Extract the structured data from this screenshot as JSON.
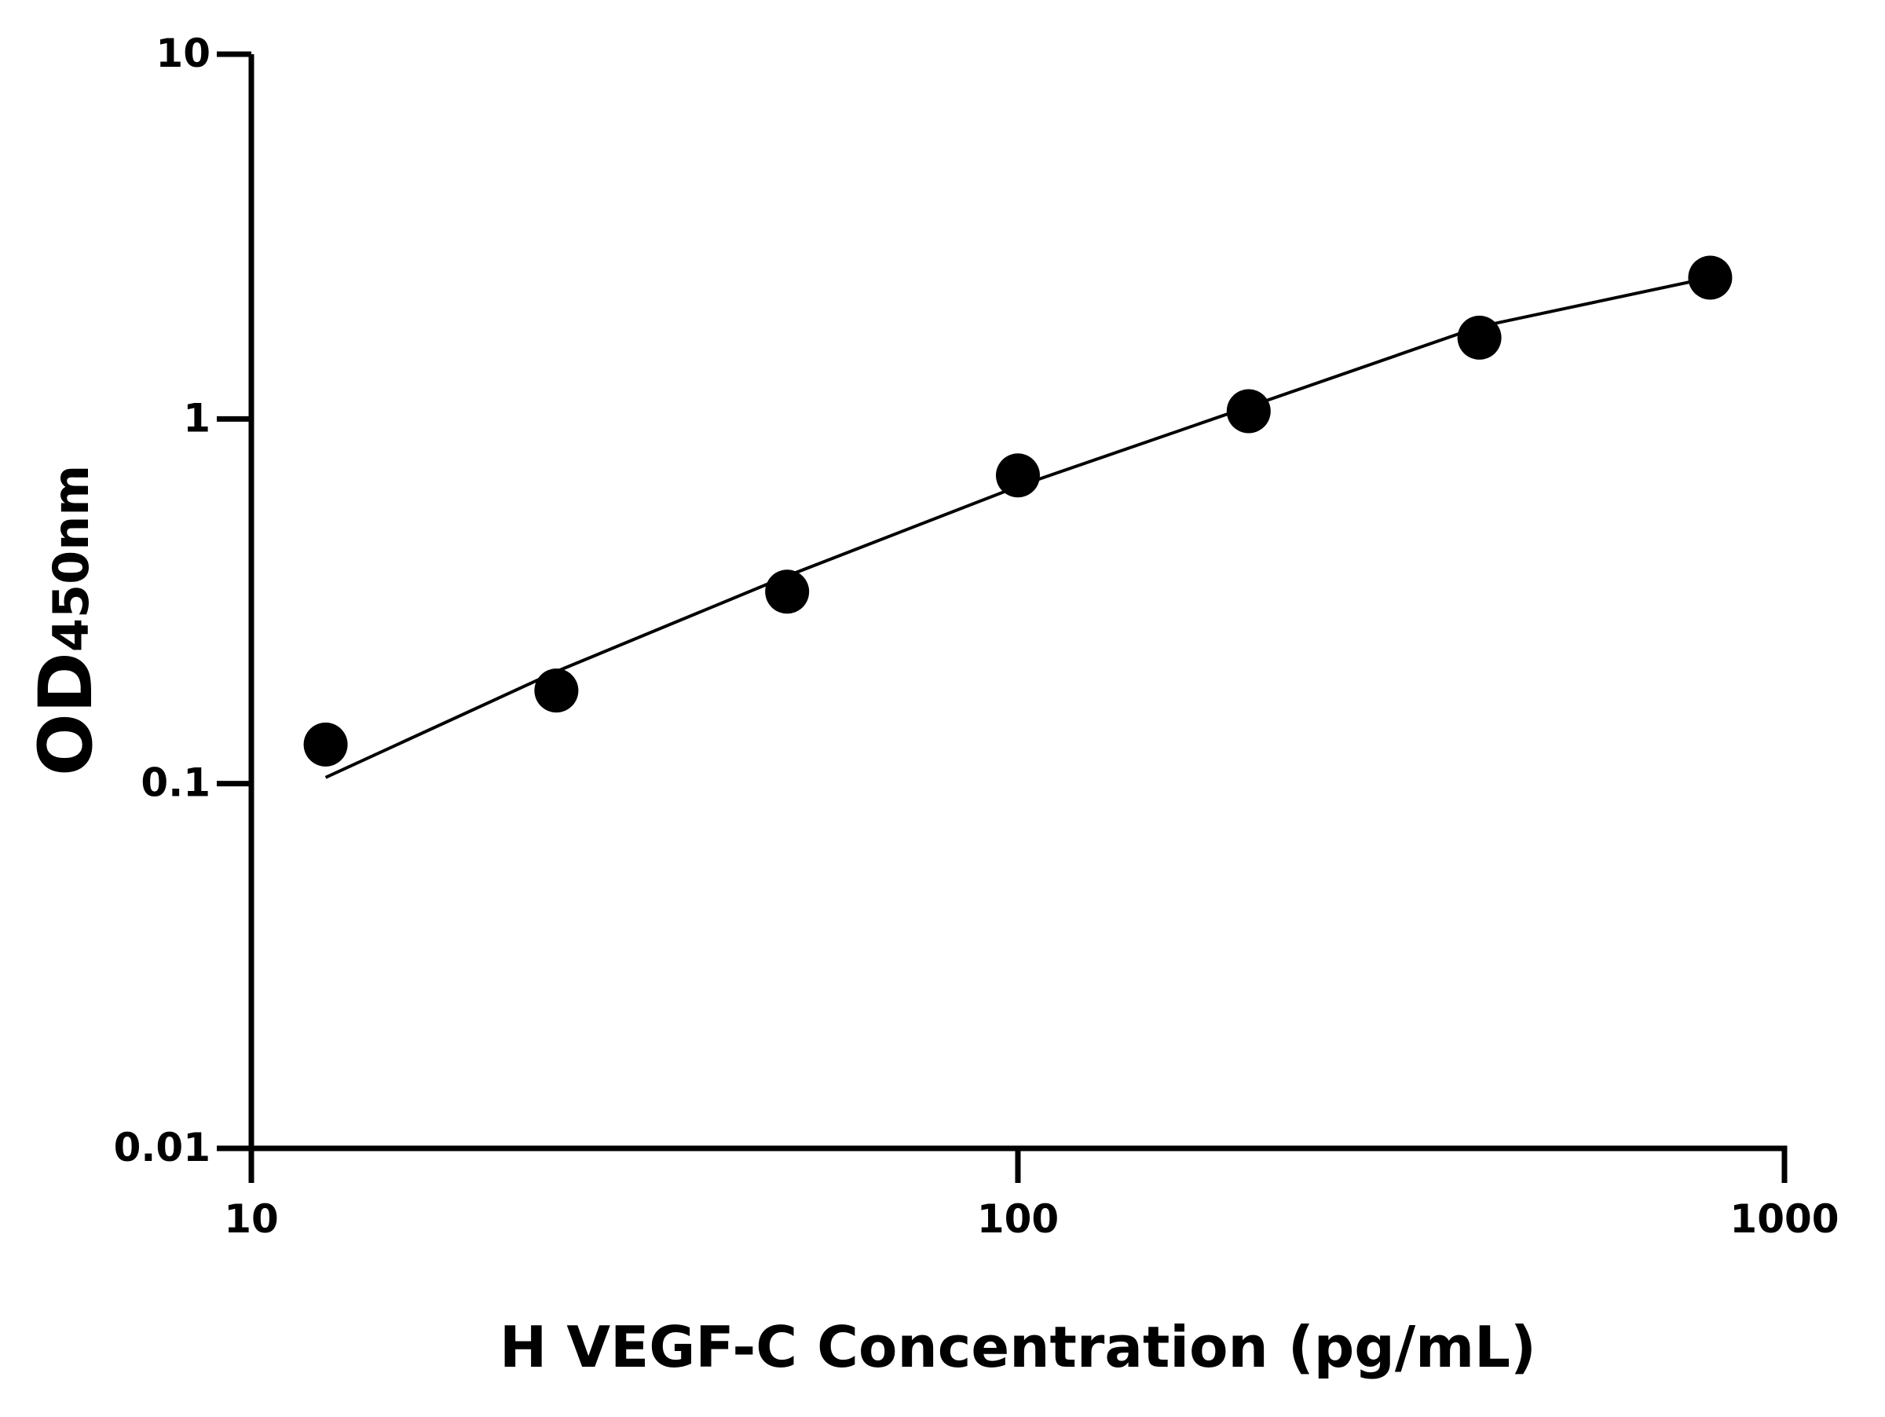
{
  "chart_data": {
    "type": "scatter",
    "x_label": "H VEGF-C Concentration (pg/mL)",
    "y_label": "OD",
    "y_label_subscript": "450nm",
    "log_x": true,
    "log_y": true,
    "xlim": [
      10,
      1000
    ],
    "ylim": [
      0.01,
      10
    ],
    "xticks": [
      10,
      100,
      1000
    ],
    "yticks": [
      0.01,
      0.1,
      1,
      10
    ],
    "color": "#000000",
    "x": [
      12.5,
      25,
      50,
      100,
      200,
      400,
      800
    ],
    "values": [
      0.128,
      0.18,
      0.336,
      0.7,
      1.05,
      1.67,
      2.44
    ],
    "fit": {
      "color": "#000000",
      "x": [
        12.5,
        25,
        50,
        100,
        200,
        400,
        800
      ],
      "values": [
        0.104,
        0.203,
        0.371,
        0.653,
        1.08,
        1.79,
        2.44
      ]
    }
  }
}
